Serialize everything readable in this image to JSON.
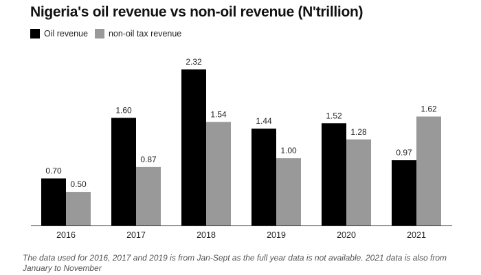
{
  "chart_data": {
    "type": "bar",
    "title": "Nigeria's oil revenue vs non-oil revenue (N'trillion)",
    "categories": [
      "2016",
      "2017",
      "2018",
      "2019",
      "2020",
      "2021"
    ],
    "series": [
      {
        "name": "Oil revenue",
        "color": "#000000",
        "values": [
          0.7,
          1.6,
          2.32,
          1.44,
          1.52,
          0.97
        ],
        "labels": [
          "0.70",
          "1.60",
          "2.32",
          "1.44",
          "1.52",
          "0.97"
        ]
      },
      {
        "name": "non-oil tax revenue",
        "color": "#999999",
        "values": [
          0.5,
          0.87,
          1.54,
          1.0,
          1.28,
          1.62
        ],
        "labels": [
          "0.50",
          "0.87",
          "1.54",
          "1.00",
          "1.28",
          "1.62"
        ]
      }
    ],
    "ylim": [
      0,
      2.32
    ],
    "grid": false,
    "legend": "top-left",
    "xlabel": "",
    "ylabel": ""
  },
  "note": "The data used for 2016, 2017 and 2019 is from Jan-Sept as the full year data is not available. 2021 data is also from January to November"
}
